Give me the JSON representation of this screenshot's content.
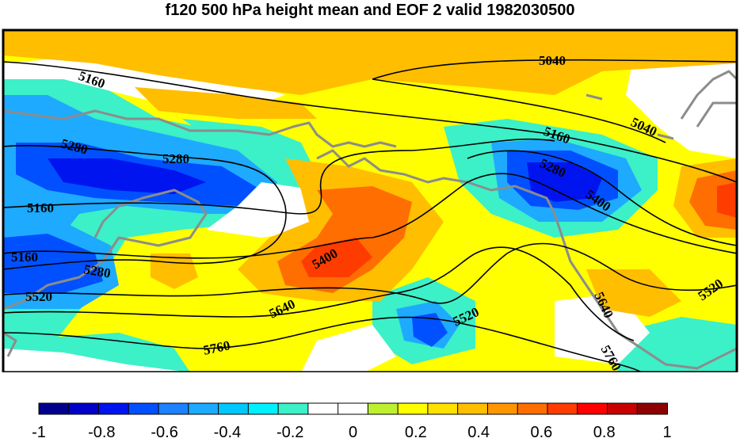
{
  "title": "f120 500 hPa height mean and EOF 2 valid 1982030500",
  "map": {
    "contour_labels": [
      {
        "text": "5040",
        "id": "contour-label-5040-a"
      },
      {
        "text": "5040",
        "id": "contour-label-5040-b"
      },
      {
        "text": "5160",
        "id": "contour-label-5160-a"
      },
      {
        "text": "5160",
        "id": "contour-label-5160-b"
      },
      {
        "text": "5160",
        "id": "contour-label-5160-c"
      },
      {
        "text": "5160",
        "id": "contour-label-5160-d"
      },
      {
        "text": "5280",
        "id": "contour-label-5280-a"
      },
      {
        "text": "5280",
        "id": "contour-label-5280-b"
      },
      {
        "text": "5280",
        "id": "contour-label-5280-c"
      },
      {
        "text": "5280",
        "id": "contour-label-5280-d"
      },
      {
        "text": "5400",
        "id": "contour-label-5400-a"
      },
      {
        "text": "5400",
        "id": "contour-label-5400-b"
      },
      {
        "text": "5520",
        "id": "contour-label-5520-a"
      },
      {
        "text": "5520",
        "id": "contour-label-5520-b"
      },
      {
        "text": "5520",
        "id": "contour-label-5520-c"
      },
      {
        "text": "5640",
        "id": "contour-label-5640-a"
      },
      {
        "text": "5640",
        "id": "contour-label-5640-b"
      },
      {
        "text": "5760",
        "id": "contour-label-5760-a"
      },
      {
        "text": "5760",
        "id": "contour-label-5760-b"
      }
    ]
  },
  "colorbar": {
    "colors": [
      "#00008c",
      "#0000c8",
      "#0014f0",
      "#0050ff",
      "#1e82ff",
      "#1eaaff",
      "#00c8ff",
      "#00f0ff",
      "#3cf0c8",
      "#ffffff",
      "#ffffff",
      "#bef032",
      "#ffff00",
      "#ffe100",
      "#ffbe00",
      "#ff9600",
      "#ff6e00",
      "#ff3c00",
      "#ff0000",
      "#c80000",
      "#8c0000"
    ],
    "tick_labels": [
      "-1",
      "-0.8",
      "-0.6",
      "-0.4",
      "-0.2",
      "0",
      "0.2",
      "0.4",
      "0.6",
      "0.8",
      "1"
    ]
  }
}
